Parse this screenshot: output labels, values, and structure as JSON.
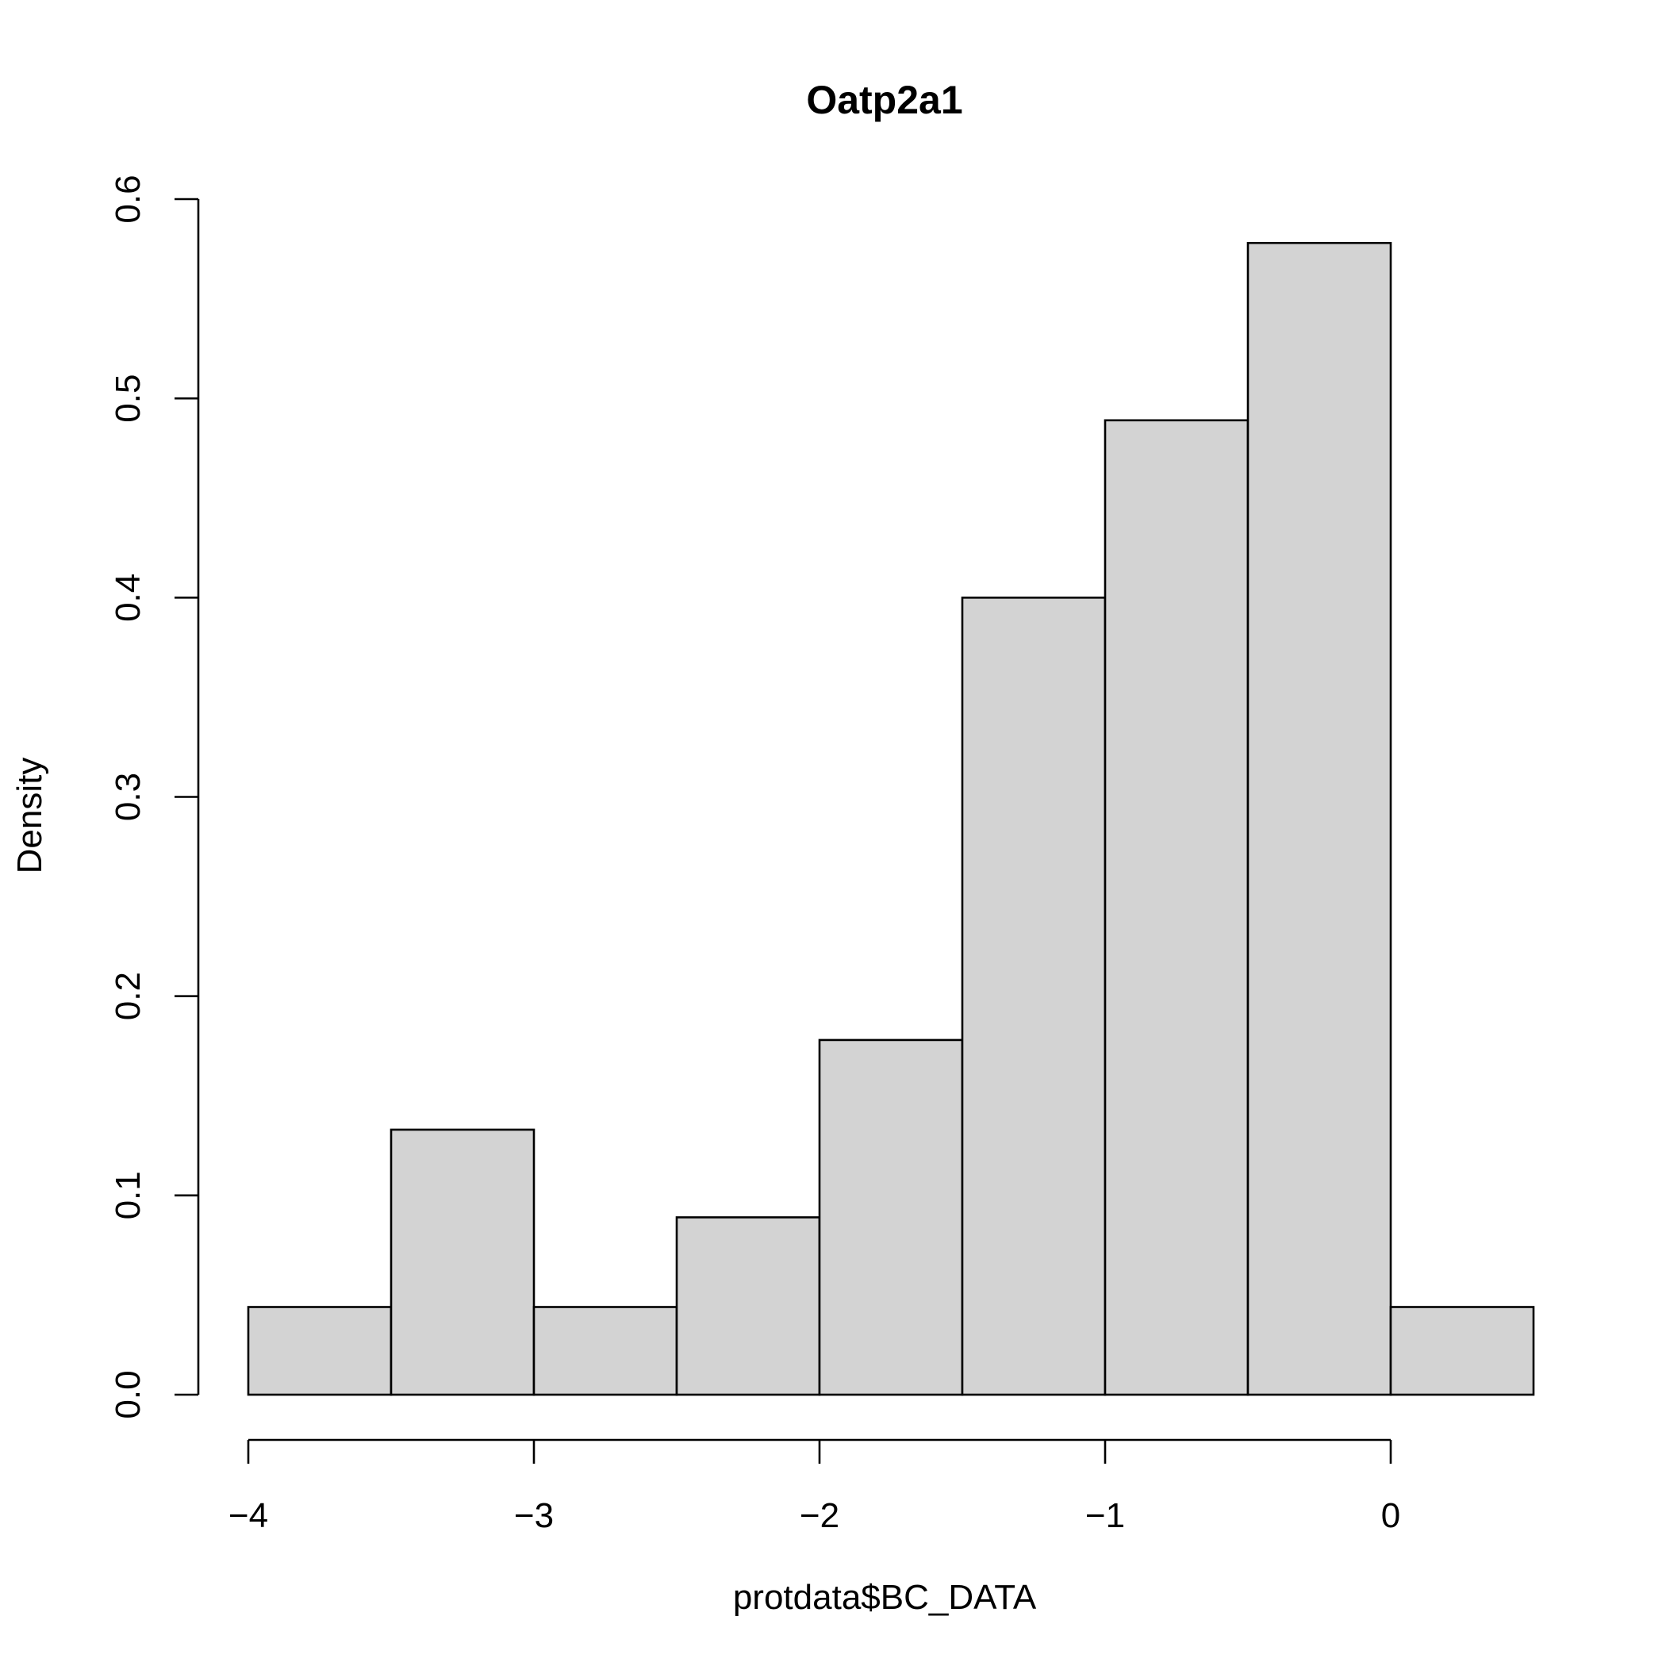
{
  "chart_data": {
    "type": "bar",
    "title": "Oatp2a1",
    "xlabel": "protdata$BC_DATA",
    "ylabel": "Density",
    "bins": [
      {
        "x0": -4.0,
        "x1": -3.5,
        "density": 0.044
      },
      {
        "x0": -3.5,
        "x1": -3.0,
        "density": 0.133
      },
      {
        "x0": -3.0,
        "x1": -2.5,
        "density": 0.044
      },
      {
        "x0": -2.5,
        "x1": -2.0,
        "density": 0.089
      },
      {
        "x0": -2.0,
        "x1": -1.5,
        "density": 0.178
      },
      {
        "x0": -1.5,
        "x1": -1.0,
        "density": 0.4
      },
      {
        "x0": -1.0,
        "x1": -0.5,
        "density": 0.489
      },
      {
        "x0": -0.5,
        "x1": 0.0,
        "density": 0.578
      },
      {
        "x0": 0.0,
        "x1": 0.5,
        "density": 0.044
      }
    ],
    "xticks": [
      -4,
      -3,
      -2,
      -1,
      0
    ],
    "xtick_labels": [
      "−4",
      "−3",
      "−2",
      "−1",
      "0"
    ],
    "yticks": [
      0.0,
      0.1,
      0.2,
      0.3,
      0.4,
      0.5,
      0.6
    ],
    "ytick_labels": [
      "0.0",
      "0.1",
      "0.2",
      "0.3",
      "0.4",
      "0.5",
      "0.6"
    ],
    "xlim": [
      -4.0,
      0.5
    ],
    "ylim": [
      0.0,
      0.6
    ],
    "grid": false,
    "colors": {
      "bar_fill": "#d3d3d3",
      "bar_stroke": "#000000"
    }
  }
}
